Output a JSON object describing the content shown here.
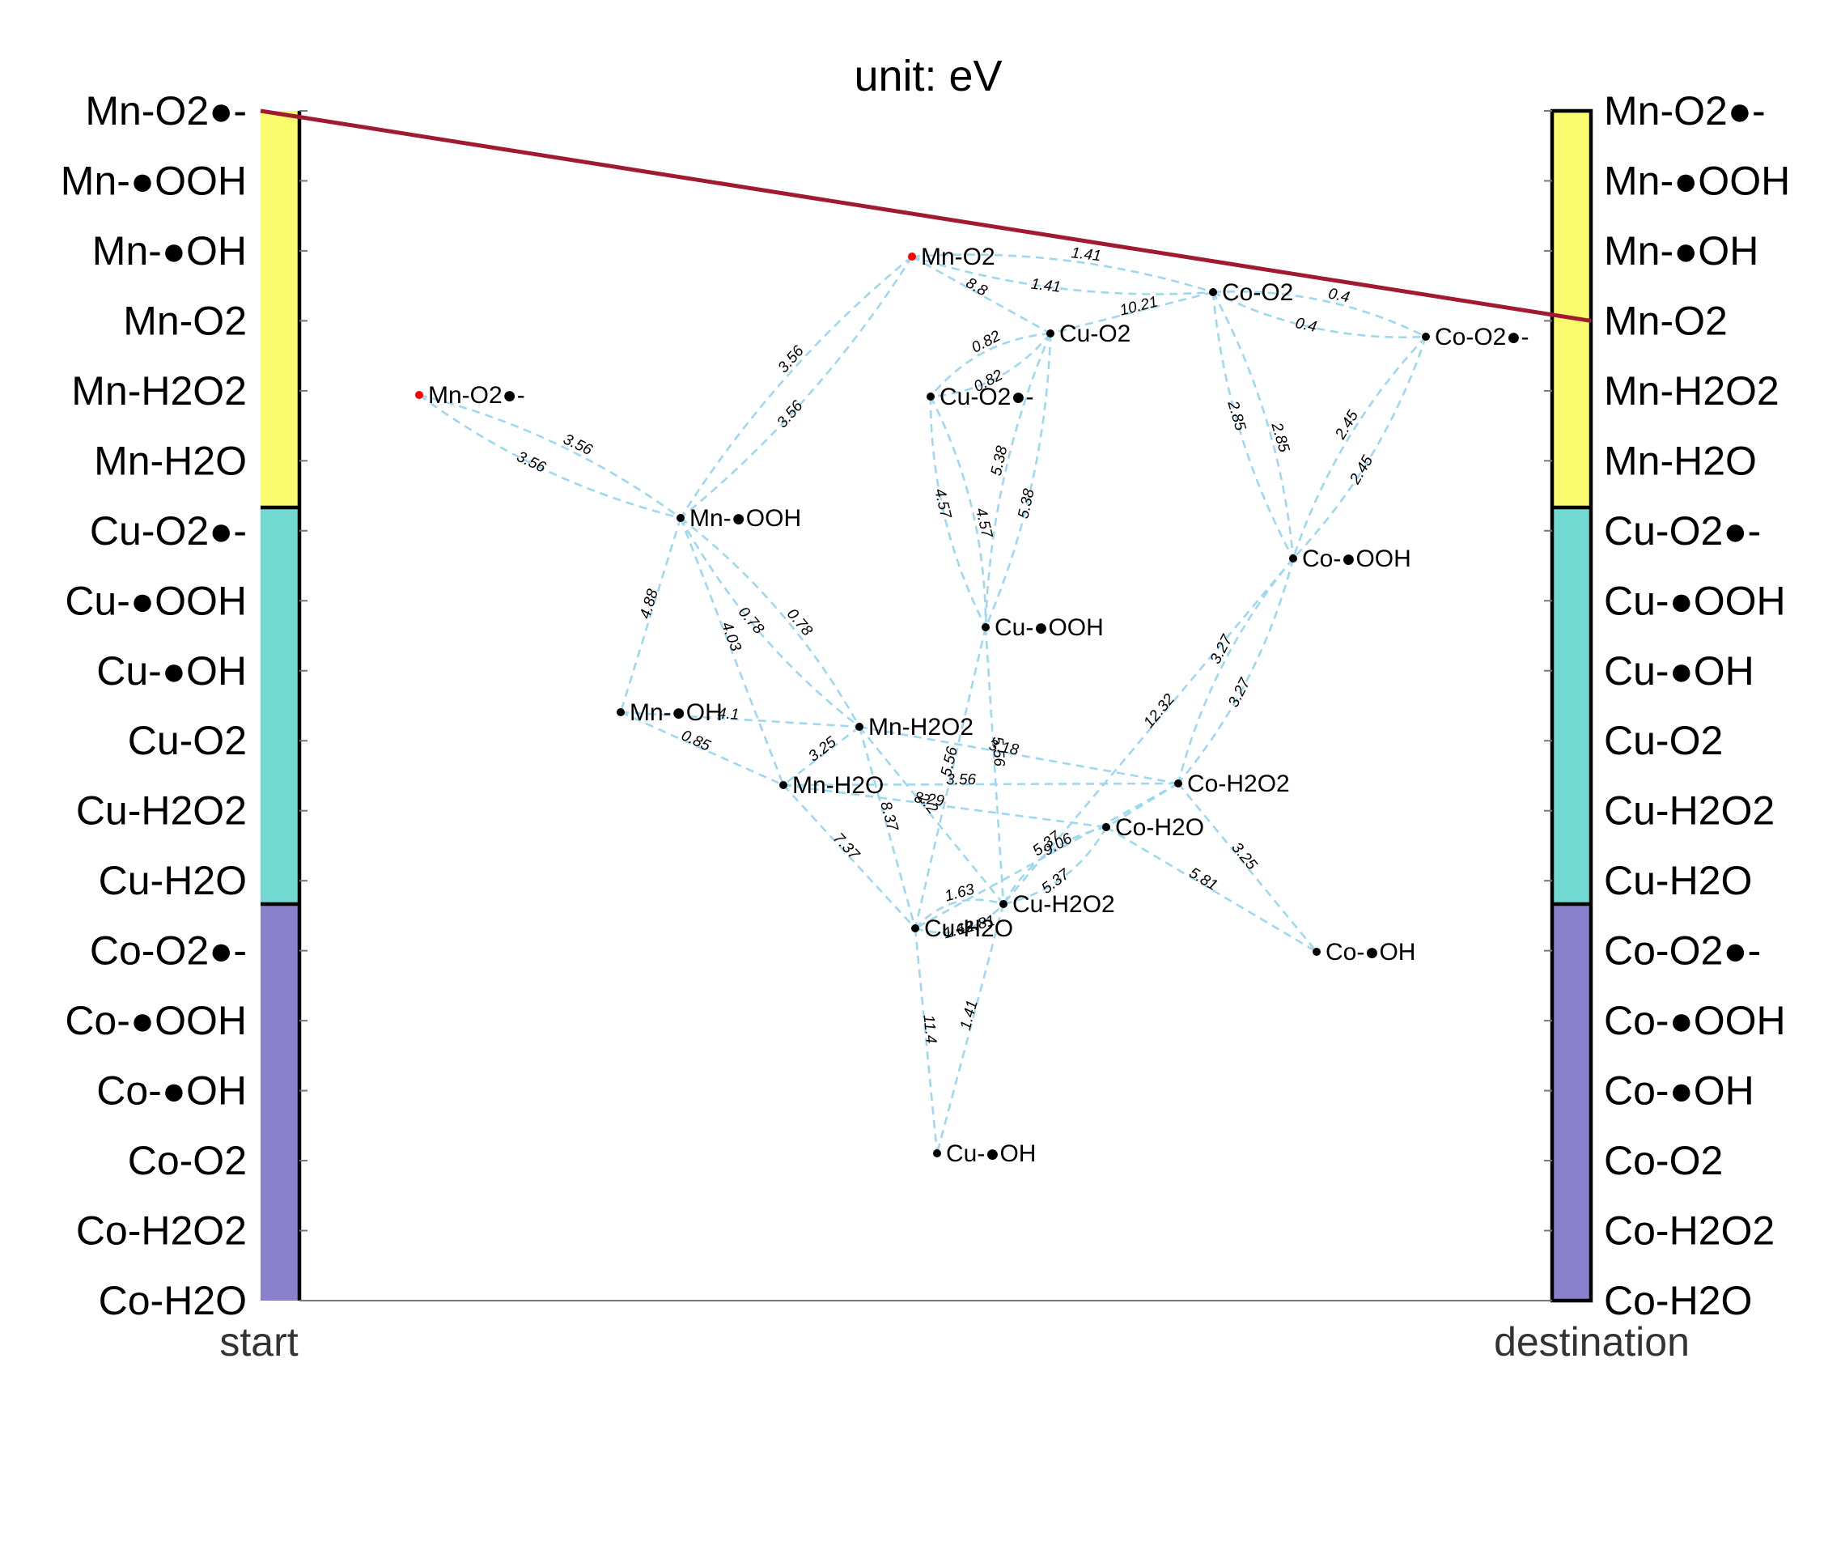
{
  "title": "unit: eV",
  "start_label": "start",
  "destination_label": "destination",
  "states": [
    "Mn-O2●-",
    "Mn-●OOH",
    "Mn-●OH",
    "Mn-O2",
    "Mn-H2O2",
    "Mn-H2O",
    "Cu-O2●-",
    "Cu-●OOH",
    "Cu-●OH",
    "Cu-O2",
    "Cu-H2O2",
    "Cu-H2O",
    "Co-O2●-",
    "Co-●OOH",
    "Co-●OH",
    "Co-O2",
    "Co-H2O2",
    "Co-H2O"
  ],
  "groups": [
    {
      "name": "Mn",
      "color": "#fbfb6e"
    },
    {
      "name": "Cu",
      "color": "#72d9d2"
    },
    {
      "name": "Co",
      "color": "#8a80cc"
    }
  ],
  "colors": {
    "edge": "#9fd8ee",
    "route": "#a01a32",
    "highlight_node": "#ff0000",
    "node": "#000000"
  },
  "route": {
    "from": "Mn-O2●-",
    "to": "Mn-O2"
  },
  "nodes": [
    {
      "id": "Mn-O2",
      "label": "Mn-O2",
      "highlight": true
    },
    {
      "id": "Mn-O2r",
      "label": "Mn-O2●-",
      "highlight": true
    },
    {
      "id": "Mn-OOH",
      "label": "Mn-●OOH",
      "highlight": false
    },
    {
      "id": "Mn-OH",
      "label": "Mn-●OH",
      "highlight": false
    },
    {
      "id": "Mn-H2O2",
      "label": "Mn-H2O2",
      "highlight": false
    },
    {
      "id": "Mn-H2O",
      "label": "Mn-H2O",
      "highlight": false
    },
    {
      "id": "Cu-O2",
      "label": "Cu-O2",
      "highlight": false
    },
    {
      "id": "Cu-O2r",
      "label": "Cu-O2●-",
      "highlight": false
    },
    {
      "id": "Cu-OOH",
      "label": "Cu-●OOH",
      "highlight": false
    },
    {
      "id": "Cu-H2O2",
      "label": "Cu-H2O2",
      "highlight": false
    },
    {
      "id": "Cu-H2O",
      "label": "Cu-H2O",
      "highlight": false
    },
    {
      "id": "Cu-OH",
      "label": "Cu-●OH",
      "highlight": false
    },
    {
      "id": "Co-O2",
      "label": "Co-O2",
      "highlight": false
    },
    {
      "id": "Co-O2r",
      "label": "Co-O2●-",
      "highlight": false
    },
    {
      "id": "Co-OOH",
      "label": "Co-●OOH",
      "highlight": false
    },
    {
      "id": "Co-H2O2",
      "label": "Co-H2O2",
      "highlight": false
    },
    {
      "id": "Co-H2O",
      "label": "Co-H2O",
      "highlight": false
    },
    {
      "id": "Co-OH",
      "label": "Co-●OH",
      "highlight": false
    }
  ],
  "edges": [
    {
      "from": "Mn-O2",
      "to": "Co-O2",
      "labels": [
        "1.41",
        "1.41"
      ]
    },
    {
      "from": "Mn-O2",
      "to": "Cu-O2",
      "labels": [
        "8.8"
      ]
    },
    {
      "from": "Mn-O2",
      "to": "Mn-OOH",
      "labels": [
        "3.56",
        "3.56"
      ]
    },
    {
      "from": "Co-O2",
      "to": "Co-O2r",
      "labels": [
        "0.4",
        "0.4"
      ]
    },
    {
      "from": "Co-O2",
      "to": "Cu-O2",
      "labels": [
        "10.21"
      ]
    },
    {
      "from": "Co-O2",
      "to": "Co-OOH",
      "labels": [
        "2.85",
        "2.85"
      ]
    },
    {
      "from": "Co-O2r",
      "to": "Co-OOH",
      "labels": [
        "2.45",
        "2.45"
      ]
    },
    {
      "from": "Cu-O2",
      "to": "Cu-O2r",
      "labels": [
        "0.82",
        "0.82"
      ]
    },
    {
      "from": "Cu-O2",
      "to": "Cu-OOH",
      "labels": [
        "5.38",
        "5.38"
      ]
    },
    {
      "from": "Cu-O2r",
      "to": "Cu-OOH",
      "labels": [
        "4.57",
        "4.57"
      ]
    },
    {
      "from": "Mn-O2r",
      "to": "Mn-OOH",
      "labels": [
        "3.56",
        "3.56"
      ]
    },
    {
      "from": "Mn-OOH",
      "to": "Mn-OH",
      "labels": [
        "4.88"
      ]
    },
    {
      "from": "Mn-OOH",
      "to": "Mn-H2O2",
      "labels": [
        "0.78",
        "0.78"
      ]
    },
    {
      "from": "Mn-OOH",
      "to": "Mn-H2O",
      "labels": [
        "4.03"
      ]
    },
    {
      "from": "Mn-OH",
      "to": "Mn-H2O2",
      "labels": [
        "4.1"
      ]
    },
    {
      "from": "Mn-OH",
      "to": "Mn-H2O",
      "labels": [
        "0.85"
      ]
    },
    {
      "from": "Mn-H2O2",
      "to": "Mn-H2O",
      "labels": [
        "3.25"
      ]
    },
    {
      "from": "Mn-H2O2",
      "to": "Co-H2O2",
      "labels": [
        "3.18"
      ]
    },
    {
      "from": "Mn-H2O2",
      "to": "Cu-H2O",
      "labels": [
        "8.37"
      ]
    },
    {
      "from": "Mn-H2O2",
      "to": "Cu-H2O2",
      "labels": [
        "2.2"
      ]
    },
    {
      "from": "Mn-H2O",
      "to": "Co-H2O",
      "labels": [
        "8.29"
      ]
    },
    {
      "from": "Mn-H2O",
      "to": "Cu-H2O",
      "labels": [
        "7.37"
      ]
    },
    {
      "from": "Cu-OOH",
      "to": "Cu-H2O2",
      "labels": [
        "5.56"
      ]
    },
    {
      "from": "Cu-OOH",
      "to": "Cu-H2O",
      "labels": [
        "5.56"
      ]
    },
    {
      "from": "Co-OOH",
      "to": "Co-H2O2",
      "labels": [
        "3.27",
        "3.27"
      ]
    },
    {
      "from": "Co-OOH",
      "to": "Cu-H2O2",
      "labels": [
        "12.32"
      ]
    },
    {
      "from": "Mn-H2O",
      "to": "Co-H2O2",
      "labels": [
        "3.56"
      ]
    },
    {
      "from": "Co-H2O2",
      "to": "Cu-H2O",
      "labels": [
        "9.06"
      ]
    },
    {
      "from": "Co-H2O2",
      "to": "Co-OH",
      "labels": [
        "3.25"
      ]
    },
    {
      "from": "Co-H2O2",
      "to": "Co-H2O",
      "labels": []
    },
    {
      "from": "Co-H2O",
      "to": "Cu-H2O2",
      "labels": [
        "5.37",
        "5.37"
      ]
    },
    {
      "from": "Co-H2O",
      "to": "Co-OH",
      "labels": [
        "5.81"
      ]
    },
    {
      "from": "Cu-H2O",
      "to": "Cu-H2O2",
      "labels": [
        "1.63",
        "1.63",
        "12.81"
      ]
    },
    {
      "from": "Cu-H2O",
      "to": "Cu-OH",
      "labels": [
        "11.4"
      ]
    },
    {
      "from": "Cu-H2O2",
      "to": "Cu-OH",
      "labels": [
        "1.41"
      ]
    }
  ]
}
